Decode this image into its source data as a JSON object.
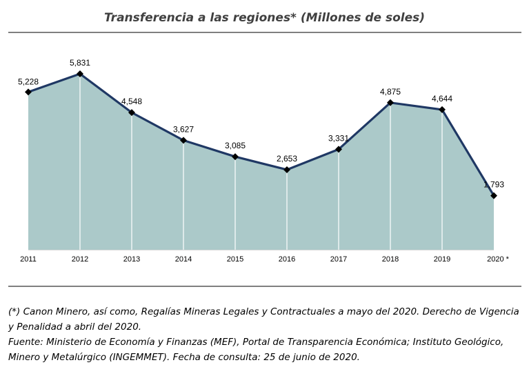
{
  "chart_data": {
    "type": "area",
    "title": "Transferencia a las regiones* (Millones de soles)",
    "categories": [
      "2011",
      "2012",
      "2013",
      "2014",
      "2015",
      "2016",
      "2017",
      "2018",
      "2019",
      "2020 *"
    ],
    "series": [
      {
        "values": [
          5228,
          5831,
          4548,
          3627,
          3085,
          2653,
          3331,
          4875,
          4644,
          1793
        ]
      }
    ],
    "value_labels": [
      "5,228",
      "5,831",
      "4,548",
      "3,627",
      "3,085",
      "2,653",
      "3,331",
      "4,875",
      "4,644",
      "1,793"
    ],
    "ylim": [
      0,
      6500
    ],
    "grid": false,
    "colors": {
      "fill": "#abc9c9",
      "line": "#1f3864",
      "marker": "#000000",
      "divider": "#ffffff"
    }
  },
  "notes": {
    "line1": "(*) Canon Minero, así como, Regalías Mineras Legales y Contractuales a mayo del 2020. Derecho de Vigencia y Penalidad a abril del 2020.",
    "line2": "Fuente: Ministerio de Economía y Finanzas (MEF), Portal de Transparencia Económica; Instituto Geológico, Minero y Metalúrgico (INGEMMET).  Fecha de consulta: 25 de junio de 2020."
  }
}
